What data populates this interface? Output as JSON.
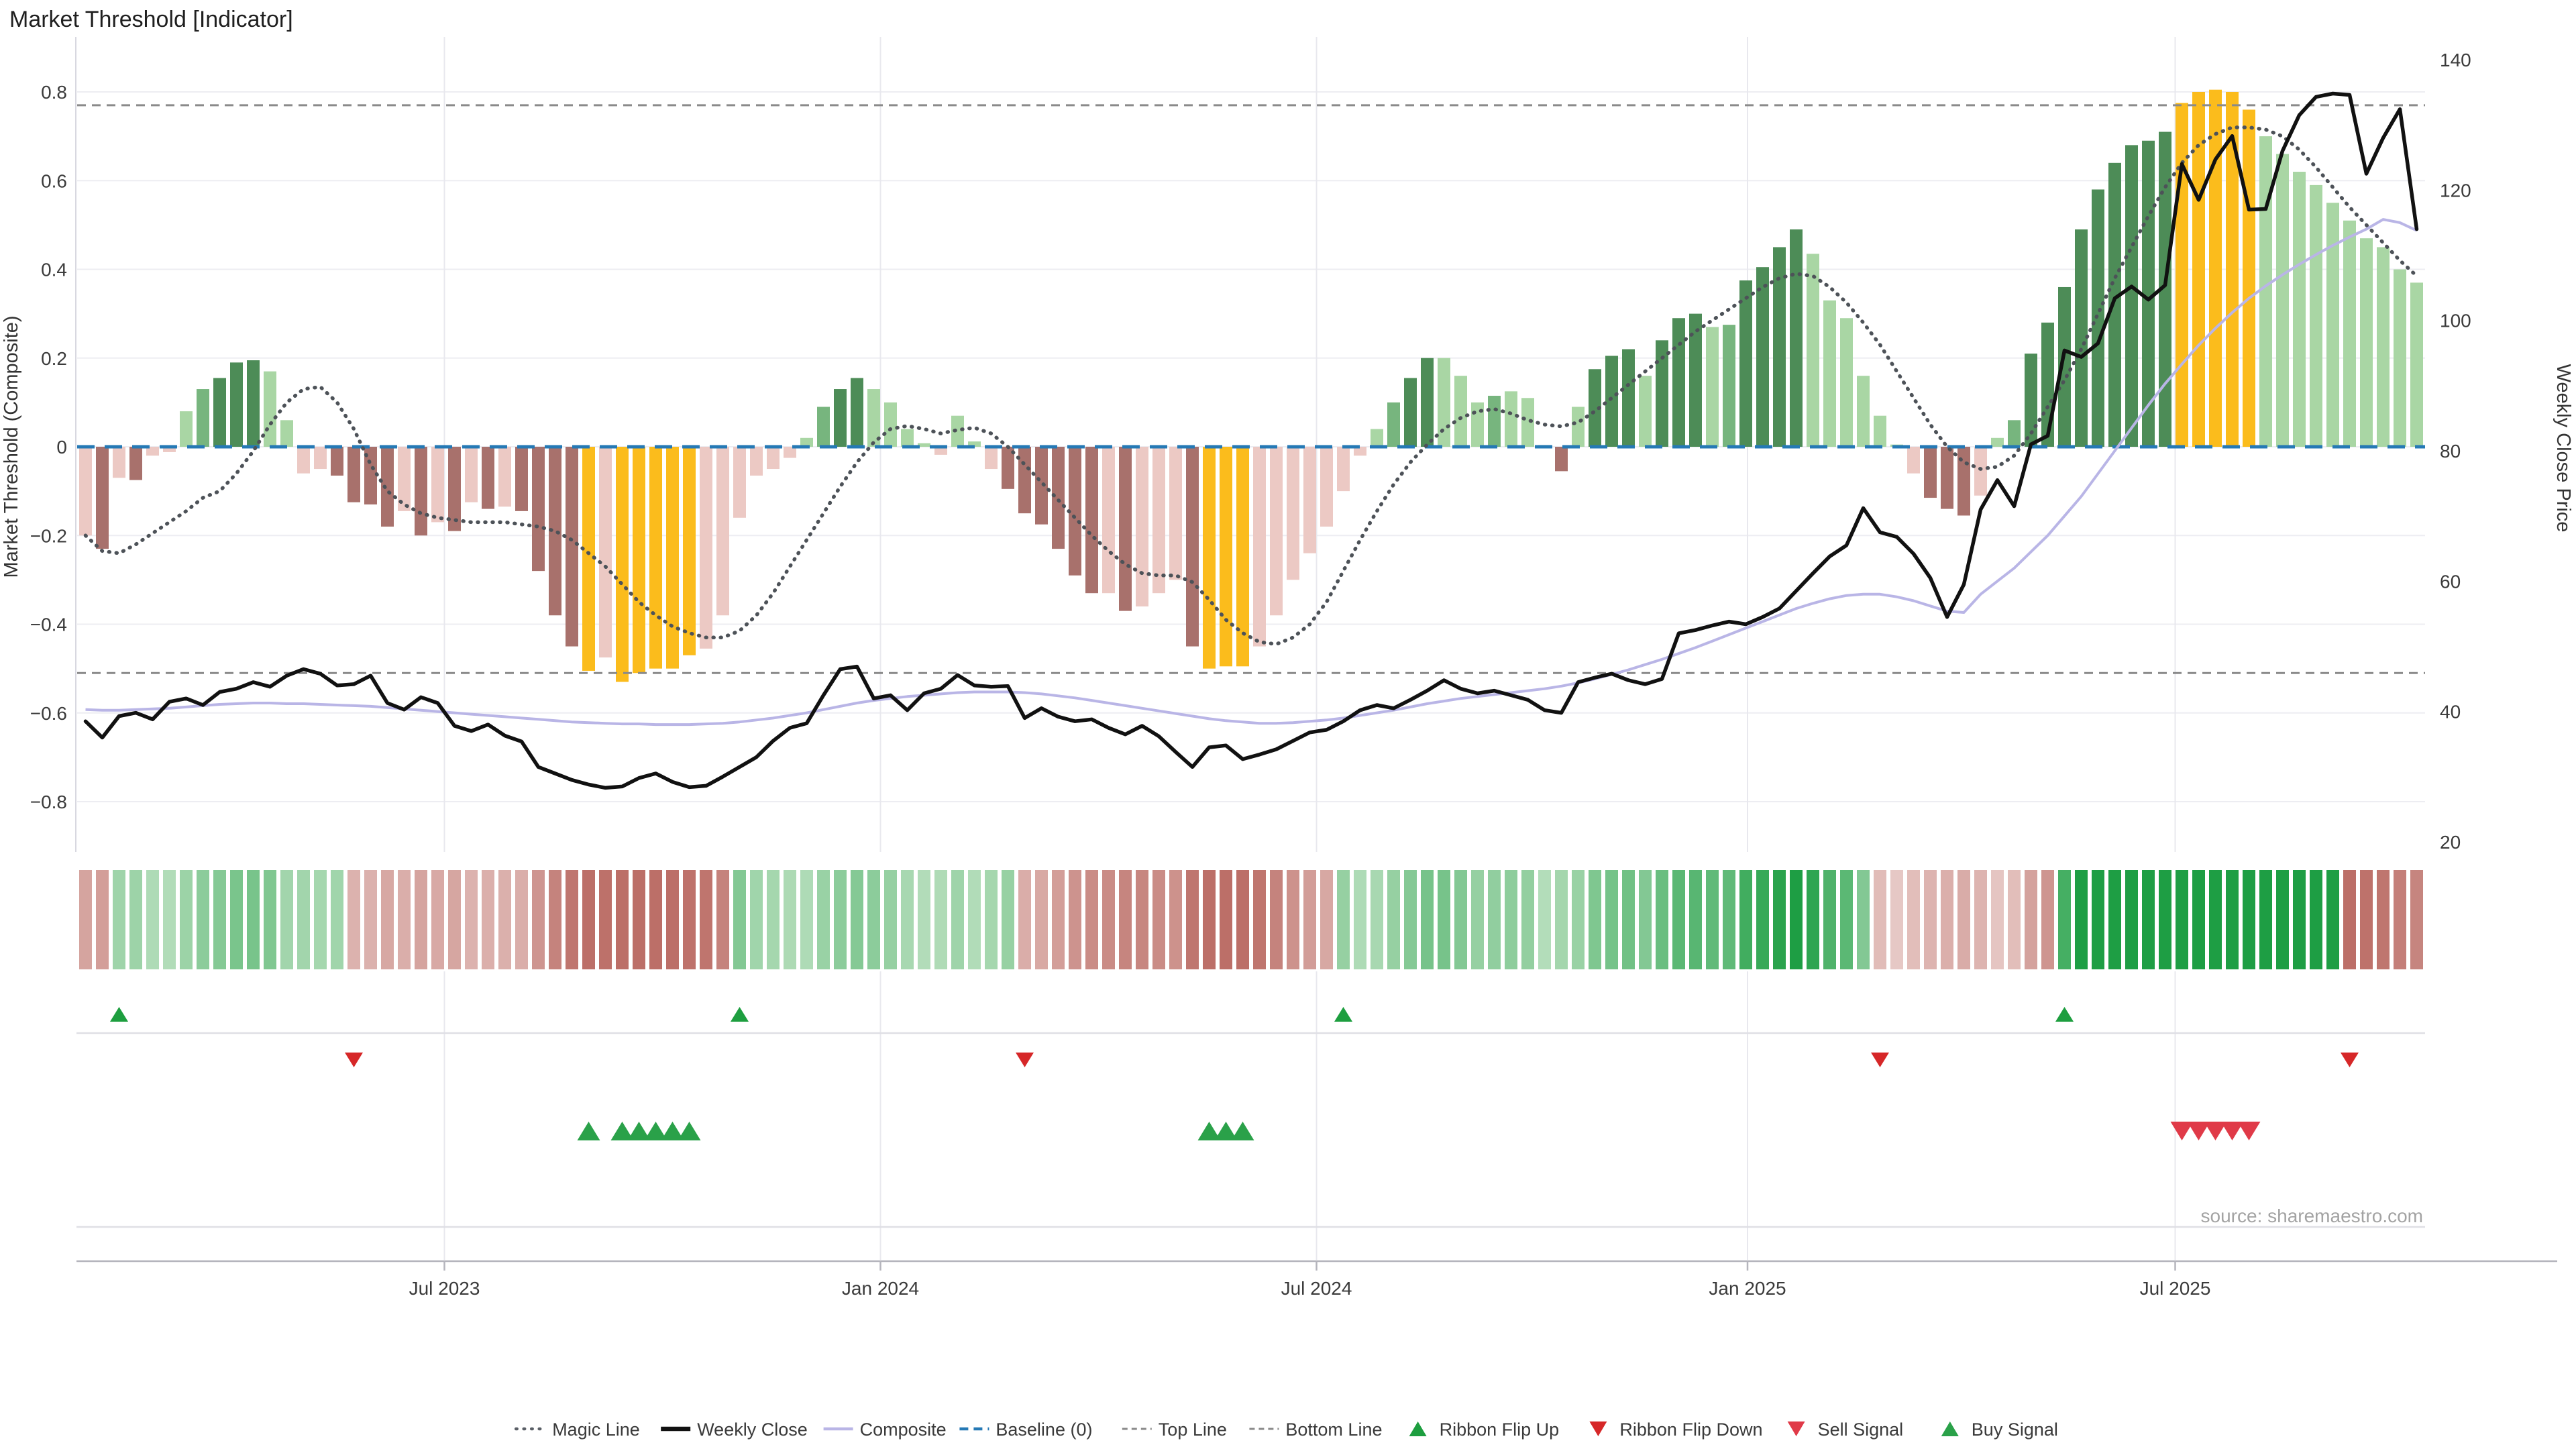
{
  "title": "Market Threshold [Indicator]",
  "source": "source: sharemaestro.com",
  "left_axis": {
    "title": "Market Threshold (Composite)",
    "tick_labels": [
      "0.8",
      "0.6",
      "0.4",
      "0.2",
      "0",
      "−0.2",
      "−0.4",
      "−0.6",
      "−0.8"
    ],
    "tick_values": [
      0.8,
      0.6,
      0.4,
      0.2,
      0,
      -0.2,
      -0.4,
      -0.6,
      -0.8
    ]
  },
  "right_axis": {
    "title": "Weekly Close Price",
    "tick_labels": [
      "140",
      "120",
      "100",
      "80",
      "60",
      "40",
      "20"
    ],
    "tick_values": [
      140,
      120,
      100,
      80,
      60,
      40,
      20
    ]
  },
  "x_axis": {
    "ticks": [
      {
        "pos": 21.4,
        "label": "Jul 2023"
      },
      {
        "pos": 47.4,
        "label": "Jan 2024"
      },
      {
        "pos": 73.4,
        "label": "Jul 2024"
      },
      {
        "pos": 99.1,
        "label": "Jan 2025"
      },
      {
        "pos": 124.6,
        "label": "Jul 2025"
      }
    ]
  },
  "legend": {
    "items": [
      {
        "label": "Magic Line",
        "marker": "dotted",
        "color": "#5a5f66"
      },
      {
        "label": "Weekly Close",
        "marker": "solid-thick",
        "color": "#111111"
      },
      {
        "label": "Composite",
        "marker": "solid",
        "color": "#b9b5e6"
      },
      {
        "label": "Baseline (0)",
        "marker": "dashed",
        "color": "#2579b5"
      },
      {
        "label": "Top Line",
        "marker": "dotted-fine",
        "color": "#8a8a8a"
      },
      {
        "label": "Bottom Line",
        "marker": "dotted-fine",
        "color": "#8a8a8a"
      },
      {
        "label": "Ribbon Flip Up",
        "marker": "triangle-up",
        "color": "#1d9e3f"
      },
      {
        "label": "Ribbon Flip Down",
        "marker": "triangle-down",
        "color": "#d62728"
      },
      {
        "label": "Sell Signal",
        "marker": "triangle-down",
        "color": "#e03a48"
      },
      {
        "label": "Buy Signal",
        "marker": "triangle-up",
        "color": "#2aa149"
      }
    ]
  },
  "colors": {
    "bar_classes": {
      "P": "#ecc9c4",
      "R": "#a8716c",
      "L": "#a9d6a4",
      "M": "#77b57e",
      "D": "#4d8c57",
      "Y": "#fbbc1c"
    },
    "magic_line": "#4d5258",
    "weekly_close": "#111111",
    "composite_line": "#b9b5e6",
    "baseline": "#2579b5",
    "top_bottom_line": "#8a8a8a",
    "grid": "#ededf2",
    "vgrid": "#e8e8ee",
    "spine": "#d8d8e0",
    "separator": "#dfdfe5",
    "axis_line": "#b5b5bd",
    "tick_text": "#3a3a3a",
    "source_text": "#a3a3a3",
    "flip_up": "#1d9e3f",
    "flip_down": "#d62728",
    "buy": "#2aa149",
    "sell": "#e03a48",
    "ribbon_green": [
      30,
      158,
      68
    ],
    "ribbon_green_light": [
      223,
      239,
      220
    ],
    "ribbon_red": [
      188,
      111,
      104
    ],
    "ribbon_red_light": [
      243,
      226,
      224
    ]
  },
  "chart_data": {
    "type": "bar",
    "subtype": "weekly combo: threshold histogram (left axis) + lines (magic on left axis; weekly close & composite on right price axis)",
    "weeks": 140,
    "baseline": 0,
    "top_line": 0.77,
    "bottom_line": -0.51,
    "left_range": [
      -0.9,
      0.92
    ],
    "right_range": [
      20,
      140
    ],
    "threshold": [
      -0.2,
      -0.23,
      -0.07,
      -0.075,
      -0.02,
      -0.012,
      0.08,
      0.13,
      0.155,
      0.19,
      0.195,
      0.17,
      0.06,
      -0.06,
      -0.05,
      -0.065,
      -0.125,
      -0.13,
      -0.18,
      -0.145,
      -0.2,
      -0.17,
      -0.19,
      -0.125,
      -0.14,
      -0.135,
      -0.145,
      -0.28,
      -0.38,
      -0.45,
      -0.505,
      -0.475,
      -0.53,
      -0.51,
      -0.5,
      -0.5,
      -0.47,
      -0.455,
      -0.38,
      -0.16,
      -0.065,
      -0.05,
      -0.025,
      0.02,
      0.09,
      0.13,
      0.155,
      0.13,
      0.1,
      0.04,
      0.008,
      -0.018,
      0.07,
      0.012,
      -0.05,
      -0.095,
      -0.15,
      -0.175,
      -0.23,
      -0.29,
      -0.33,
      -0.33,
      -0.37,
      -0.36,
      -0.33,
      -0.3,
      -0.45,
      -0.5,
      -0.495,
      -0.495,
      -0.45,
      -0.38,
      -0.3,
      -0.24,
      -0.18,
      -0.1,
      -0.02,
      0.04,
      0.1,
      0.155,
      0.2,
      0.2,
      0.16,
      0.1,
      0.115,
      0.125,
      0.11,
      0.004,
      -0.055,
      0.09,
      0.175,
      0.205,
      0.22,
      0.16,
      0.24,
      0.29,
      0.3,
      0.27,
      0.275,
      0.375,
      0.405,
      0.45,
      0.49,
      0.435,
      0.33,
      0.29,
      0.16,
      0.07,
      0.005,
      -0.06,
      -0.115,
      -0.14,
      -0.155,
      -0.11,
      0.02,
      0.06,
      0.21,
      0.28,
      0.36,
      0.49,
      0.58,
      0.64,
      0.68,
      0.69,
      0.71,
      0.775,
      0.8,
      0.805,
      0.8,
      0.76,
      0.7,
      0.66,
      0.62,
      0.59,
      0.55,
      0.51,
      0.47,
      0.45,
      0.4,
      0.37
    ],
    "threshold_color_class": "PRPRPPLMDDDLLPPRRRRPRPRPRPRRRRYPYYYYYPPPPPPLMDDLLLLPLLPRRRRRRPRPPPRYYYPPPPPPPLMDDLLLMLLLRLDDDLDDDLMDDDDLLLLLLPRRRPLMDDDDDDDDDYYYYYLLLLLLLLLL",
    "magic_line": [
      -0.2,
      -0.235,
      -0.24,
      -0.22,
      -0.195,
      -0.17,
      -0.145,
      -0.115,
      -0.1,
      -0.06,
      -0.01,
      0.05,
      0.1,
      0.13,
      0.135,
      0.1,
      0.04,
      -0.04,
      -0.1,
      -0.13,
      -0.15,
      -0.16,
      -0.165,
      -0.17,
      -0.17,
      -0.17,
      -0.175,
      -0.18,
      -0.19,
      -0.21,
      -0.24,
      -0.27,
      -0.31,
      -0.35,
      -0.38,
      -0.405,
      -0.42,
      -0.43,
      -0.43,
      -0.415,
      -0.38,
      -0.33,
      -0.27,
      -0.21,
      -0.15,
      -0.09,
      -0.035,
      0.01,
      0.04,
      0.047,
      0.04,
      0.03,
      0.038,
      0.043,
      0.03,
      0.0,
      -0.04,
      -0.08,
      -0.12,
      -0.16,
      -0.2,
      -0.235,
      -0.265,
      -0.285,
      -0.29,
      -0.29,
      -0.305,
      -0.345,
      -0.39,
      -0.42,
      -0.44,
      -0.445,
      -0.43,
      -0.4,
      -0.35,
      -0.28,
      -0.21,
      -0.145,
      -0.085,
      -0.035,
      0.005,
      0.04,
      0.065,
      0.08,
      0.085,
      0.075,
      0.06,
      0.05,
      0.046,
      0.055,
      0.08,
      0.11,
      0.14,
      0.17,
      0.2,
      0.23,
      0.26,
      0.285,
      0.31,
      0.335,
      0.36,
      0.38,
      0.39,
      0.385,
      0.36,
      0.325,
      0.28,
      0.23,
      0.17,
      0.11,
      0.05,
      0.0,
      -0.035,
      -0.05,
      -0.045,
      -0.02,
      0.03,
      0.09,
      0.15,
      0.22,
      0.3,
      0.38,
      0.45,
      0.52,
      0.585,
      0.64,
      0.68,
      0.705,
      0.72,
      0.72,
      0.715,
      0.7,
      0.67,
      0.63,
      0.585,
      0.54,
      0.5,
      0.46,
      0.42,
      0.385
    ],
    "weekly_close": [
      38.5,
      36,
      39.3,
      39.8,
      38.8,
      41.5,
      42,
      41,
      43,
      43.5,
      44.5,
      43.8,
      45.5,
      46.5,
      45.8,
      44,
      44.2,
      45.5,
      41.3,
      40.3,
      42.2,
      41.3,
      37.8,
      37,
      38,
      36.3,
      35.4,
      31.5,
      30.5,
      29.5,
      28.8,
      28.3,
      28.5,
      29.8,
      30.5,
      29.2,
      28.4,
      28.6,
      30,
      31.5,
      33,
      35.5,
      37.5,
      38.2,
      42.5,
      46.5,
      46.9,
      42,
      42.5,
      40.2,
      42.8,
      43.5,
      45.6,
      44,
      43.8,
      43.9,
      39,
      40.5,
      39.2,
      38.5,
      38.8,
      37.5,
      36.5,
      37.8,
      36.2,
      33.8,
      31.5,
      34.5,
      34.8,
      32.7,
      33.4,
      34.2,
      35.5,
      36.8,
      37.2,
      38.5,
      40.2,
      41,
      40.5,
      41.8,
      43.2,
      44.8,
      43.5,
      42.8,
      43.2,
      42.5,
      41.8,
      40.2,
      39.8,
      44.5,
      45.2,
      45.8,
      44.8,
      44.2,
      45,
      52,
      52.5,
      53.2,
      53.8,
      53.4,
      54.5,
      55.8,
      58.5,
      61.2,
      63.8,
      65.5,
      71.2,
      67.5,
      66.8,
      64.2,
      60.5,
      54.5,
      59.5,
      71,
      75.5,
      71.5,
      81,
      82.3,
      95.4,
      94.4,
      96.5,
      103.4,
      105.2,
      103.2,
      105.4,
      124,
      118.5,
      124.7,
      128.3,
      117,
      117.1,
      126,
      131.5,
      134.3,
      134.8,
      134.6,
      122.5,
      128,
      132.4,
      114
    ],
    "composite": [
      40.3,
      40.2,
      40.2,
      40.3,
      40.4,
      40.5,
      40.7,
      40.9,
      41.1,
      41.2,
      41.3,
      41.3,
      41.2,
      41.2,
      41.1,
      41.0,
      40.9,
      40.8,
      40.6,
      40.4,
      40.2,
      40.0,
      39.8,
      39.6,
      39.4,
      39.2,
      39.0,
      38.8,
      38.6,
      38.4,
      38.3,
      38.2,
      38.1,
      38.1,
      38.0,
      38.0,
      38.0,
      38.1,
      38.2,
      38.4,
      38.7,
      39.0,
      39.4,
      39.8,
      40.3,
      40.8,
      41.3,
      41.7,
      42.0,
      42.3,
      42.5,
      42.7,
      42.9,
      43.0,
      43.0,
      43.0,
      42.9,
      42.7,
      42.4,
      42.1,
      41.7,
      41.3,
      40.9,
      40.5,
      40.1,
      39.7,
      39.3,
      38.9,
      38.6,
      38.4,
      38.2,
      38.2,
      38.3,
      38.5,
      38.7,
      39.0,
      39.4,
      39.8,
      40.2,
      40.7,
      41.2,
      41.6,
      42.0,
      42.3,
      42.6,
      42.9,
      43.2,
      43.5,
      43.9,
      44.4,
      45.0,
      45.7,
      46.4,
      47.2,
      48.0,
      48.9,
      49.8,
      50.8,
      51.8,
      52.8,
      53.8,
      54.8,
      55.8,
      56.6,
      57.3,
      57.8,
      58.0,
      58.0,
      57.6,
      57.0,
      56.2,
      55.4,
      55.2,
      58.0,
      60.0,
      62.0,
      64.5,
      67.0,
      70.0,
      73.0,
      76.5,
      80.0,
      83.5,
      87.0,
      90.3,
      93.3,
      96.2,
      98.8,
      101.2,
      103.4,
      105.3,
      107.0,
      108.6,
      110.1,
      111.5,
      112.8,
      114.0,
      115.5,
      115.0,
      113.8
    ],
    "ribbon_segments": [
      {
        "state": "red",
        "from": 0,
        "to": 1
      },
      {
        "state": "green",
        "from": 2,
        "to": 15
      },
      {
        "state": "red",
        "from": 16,
        "to": 38
      },
      {
        "state": "green",
        "from": 39,
        "to": 55
      },
      {
        "state": "red",
        "from": 56,
        "to": 74
      },
      {
        "state": "green",
        "from": 75,
        "to": 106
      },
      {
        "state": "red",
        "from": 107,
        "to": 117
      },
      {
        "state": "green",
        "from": 118,
        "to": 134
      },
      {
        "state": "red",
        "from": 135,
        "to": 139
      }
    ],
    "signals": {
      "ribbon_flip_up": [
        2,
        39,
        75,
        118
      ],
      "ribbon_flip_down": [
        16,
        56,
        107,
        135
      ],
      "buy": [
        30,
        32,
        33,
        34,
        35,
        36,
        67,
        68,
        69
      ],
      "sell": [
        125,
        126,
        127,
        128,
        129
      ]
    }
  }
}
